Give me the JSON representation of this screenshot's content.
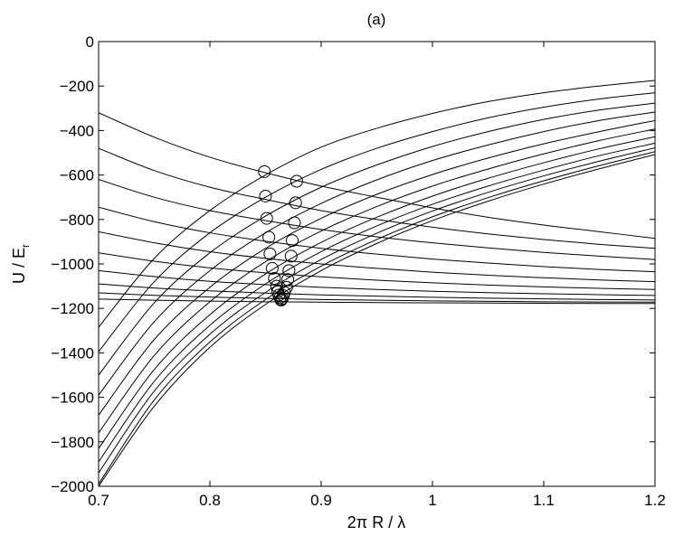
{
  "chart_data": {
    "type": "line",
    "title": "(a)",
    "xlabel": "2π R / λ",
    "ylabel": {
      "main": "U / E",
      "subscript": "r"
    },
    "xlim": [
      0.7,
      1.2
    ],
    "ylim": [
      -2000,
      0
    ],
    "xticks": [
      0.7,
      0.8,
      0.9,
      1.0,
      1.1,
      1.2
    ],
    "xtick_labels": [
      "0.7",
      "0.8",
      "0.9",
      "1",
      "1.1",
      "1.2"
    ],
    "yticks": [
      0,
      -200,
      -400,
      -600,
      -800,
      -1000,
      -1200,
      -1400,
      -1600,
      -1800,
      -2000
    ],
    "ytick_labels": [
      "0",
      "−200",
      "−400",
      "−600",
      "−800",
      "−1000",
      "−1200",
      "−1400",
      "−1600",
      "−1800",
      "−2000"
    ],
    "grid": false,
    "line_color": "#000000",
    "series": [
      {
        "x": [
          0.7,
          0.75,
          0.8,
          0.85,
          0.9,
          0.95,
          1.0,
          1.05,
          1.1,
          1.15,
          1.2
        ],
        "y": [
          -320,
          -430,
          -520,
          -590,
          -650,
          -700,
          -748,
          -790,
          -825,
          -855,
          -885
        ]
      },
      {
        "x": [
          0.7,
          0.75,
          0.8,
          0.85,
          0.9,
          0.95,
          1.0,
          1.05,
          1.1,
          1.15,
          1.2
        ],
        "y": [
          -480,
          -580,
          -655,
          -710,
          -760,
          -800,
          -835,
          -865,
          -890,
          -912,
          -930
        ]
      },
      {
        "x": [
          0.7,
          0.75,
          0.8,
          0.85,
          0.9,
          0.95,
          1.0,
          1.05,
          1.1,
          1.15,
          1.2
        ],
        "y": [
          -620,
          -700,
          -760,
          -805,
          -845,
          -878,
          -905,
          -928,
          -948,
          -965,
          -980
        ]
      },
      {
        "x": [
          0.7,
          0.75,
          0.8,
          0.85,
          0.9,
          0.95,
          1.0,
          1.05,
          1.1,
          1.15,
          1.2
        ],
        "y": [
          -745,
          -810,
          -860,
          -898,
          -930,
          -956,
          -978,
          -996,
          -1012,
          -1025,
          -1035
        ]
      },
      {
        "x": [
          0.7,
          0.75,
          0.8,
          0.85,
          0.9,
          0.95,
          1.0,
          1.05,
          1.1,
          1.15,
          1.2
        ],
        "y": [
          -855,
          -905,
          -945,
          -975,
          -1000,
          -1020,
          -1037,
          -1051,
          -1062,
          -1072,
          -1080
        ]
      },
      {
        "x": [
          0.7,
          0.75,
          0.8,
          0.85,
          0.9,
          0.95,
          1.0,
          1.05,
          1.1,
          1.15,
          1.2
        ],
        "y": [
          -950,
          -988,
          -1018,
          -1040,
          -1058,
          -1073,
          -1085,
          -1095,
          -1103,
          -1110,
          -1115
        ]
      },
      {
        "x": [
          0.7,
          0.75,
          0.8,
          0.85,
          0.9,
          0.95,
          1.0,
          1.05,
          1.1,
          1.15,
          1.2
        ],
        "y": [
          -1030,
          -1057,
          -1078,
          -1093,
          -1105,
          -1115,
          -1123,
          -1129,
          -1134,
          -1138,
          -1142
        ]
      },
      {
        "x": [
          0.7,
          0.75,
          0.8,
          0.85,
          0.9,
          0.95,
          1.0,
          1.05,
          1.1,
          1.15,
          1.2
        ],
        "y": [
          -1090,
          -1108,
          -1121,
          -1131,
          -1139,
          -1145,
          -1150,
          -1154,
          -1157,
          -1160,
          -1162
        ]
      },
      {
        "x": [
          0.7,
          0.75,
          0.8,
          0.85,
          0.9,
          0.95,
          1.0,
          1.05,
          1.1,
          1.15,
          1.2
        ],
        "y": [
          -1130,
          -1141,
          -1149,
          -1155,
          -1160,
          -1163,
          -1166,
          -1168,
          -1170,
          -1171,
          -1172
        ]
      },
      {
        "x": [
          0.7,
          0.75,
          0.8,
          0.85,
          0.9,
          0.95,
          1.0,
          1.05,
          1.1,
          1.15,
          1.2
        ],
        "y": [
          -1158,
          -1163,
          -1167,
          -1170,
          -1172,
          -1174,
          -1175,
          -1176,
          -1177,
          -1178,
          -1178
        ]
      },
      {
        "x": [
          0.7,
          0.75,
          0.8,
          0.85,
          0.9,
          0.95,
          1.0,
          1.05,
          1.1,
          1.15,
          1.2
        ],
        "y": [
          -1285,
          -975,
          -760,
          -600,
          -475,
          -390,
          -323,
          -270,
          -230,
          -200,
          -175
        ]
      },
      {
        "x": [
          0.7,
          0.75,
          0.8,
          0.85,
          0.9,
          0.95,
          1.0,
          1.05,
          1.1,
          1.15,
          1.2
        ],
        "y": [
          -1395,
          -1080,
          -860,
          -700,
          -575,
          -480,
          -405,
          -343,
          -295,
          -258,
          -230
        ]
      },
      {
        "x": [
          0.7,
          0.75,
          0.8,
          0.85,
          0.9,
          0.95,
          1.0,
          1.05,
          1.1,
          1.15,
          1.2
        ],
        "y": [
          -1500,
          -1175,
          -950,
          -785,
          -655,
          -555,
          -472,
          -405,
          -350,
          -308,
          -277
        ]
      },
      {
        "x": [
          0.7,
          0.75,
          0.8,
          0.85,
          0.9,
          0.95,
          1.0,
          1.05,
          1.1,
          1.15,
          1.2
        ],
        "y": [
          -1590,
          -1260,
          -1030,
          -860,
          -728,
          -622,
          -535,
          -465,
          -405,
          -355,
          -317
        ]
      },
      {
        "x": [
          0.7,
          0.75,
          0.8,
          0.85,
          0.9,
          0.95,
          1.0,
          1.05,
          1.1,
          1.15,
          1.2
        ],
        "y": [
          -1680,
          -1340,
          -1105,
          -930,
          -795,
          -687,
          -598,
          -524,
          -460,
          -405,
          -355
        ]
      },
      {
        "x": [
          0.7,
          0.75,
          0.8,
          0.85,
          0.9,
          0.95,
          1.0,
          1.05,
          1.1,
          1.15,
          1.2
        ],
        "y": [
          -1760,
          -1412,
          -1170,
          -990,
          -852,
          -742,
          -650,
          -573,
          -505,
          -445,
          -393
        ]
      },
      {
        "x": [
          0.7,
          0.75,
          0.8,
          0.85,
          0.9,
          0.95,
          1.0,
          1.05,
          1.1,
          1.15,
          1.2
        ],
        "y": [
          -1830,
          -1475,
          -1228,
          -1045,
          -903,
          -790,
          -695,
          -615,
          -545,
          -482,
          -428
        ]
      },
      {
        "x": [
          0.7,
          0.75,
          0.8,
          0.85,
          0.9,
          0.95,
          1.0,
          1.05,
          1.1,
          1.15,
          1.2
        ],
        "y": [
          -1890,
          -1528,
          -1276,
          -1090,
          -945,
          -829,
          -732,
          -650,
          -578,
          -513,
          -457
        ]
      },
      {
        "x": [
          0.7,
          0.75,
          0.8,
          0.85,
          0.9,
          0.95,
          1.0,
          1.05,
          1.1,
          1.15,
          1.2
        ],
        "y": [
          -1940,
          -1572,
          -1316,
          -1128,
          -980,
          -862,
          -762,
          -678,
          -604,
          -538,
          -478
        ]
      },
      {
        "x": [
          0.7,
          0.75,
          0.8,
          0.85,
          0.9,
          0.95,
          1.0,
          1.05,
          1.1,
          1.15,
          1.2
        ],
        "y": [
          -1990,
          -1612,
          -1351,
          -1160,
          -1010,
          -890,
          -788,
          -702,
          -626,
          -558,
          -495
        ]
      },
      {
        "x": [
          0.7,
          0.75,
          0.8,
          0.85,
          0.9,
          0.95,
          1.0,
          1.05,
          1.1,
          1.15,
          1.2
        ],
        "y": [
          -2000,
          -1640,
          -1375,
          -1182,
          -1030,
          -908,
          -805,
          -718,
          -641,
          -572,
          -508
        ]
      }
    ],
    "markers": {
      "shape": "open-circle",
      "points": [
        {
          "x": 0.849,
          "y": -585
        },
        {
          "x": 0.878,
          "y": -628
        },
        {
          "x": 0.85,
          "y": -695
        },
        {
          "x": 0.877,
          "y": -725
        },
        {
          "x": 0.851,
          "y": -795
        },
        {
          "x": 0.876,
          "y": -815
        },
        {
          "x": 0.853,
          "y": -880
        },
        {
          "x": 0.874,
          "y": -895
        },
        {
          "x": 0.854,
          "y": -955
        },
        {
          "x": 0.873,
          "y": -965
        },
        {
          "x": 0.856,
          "y": -1020
        },
        {
          "x": 0.871,
          "y": -1030
        },
        {
          "x": 0.858,
          "y": -1065
        },
        {
          "x": 0.87,
          "y": -1070
        },
        {
          "x": 0.86,
          "y": -1100
        },
        {
          "x": 0.869,
          "y": -1105
        },
        {
          "x": 0.861,
          "y": -1125
        },
        {
          "x": 0.867,
          "y": -1128
        },
        {
          "x": 0.862,
          "y": -1140
        },
        {
          "x": 0.866,
          "y": -1143
        },
        {
          "x": 0.863,
          "y": -1152
        },
        {
          "x": 0.865,
          "y": -1155
        },
        {
          "x": 0.864,
          "y": -1160
        },
        {
          "x": 0.864,
          "y": -1163
        }
      ]
    }
  }
}
